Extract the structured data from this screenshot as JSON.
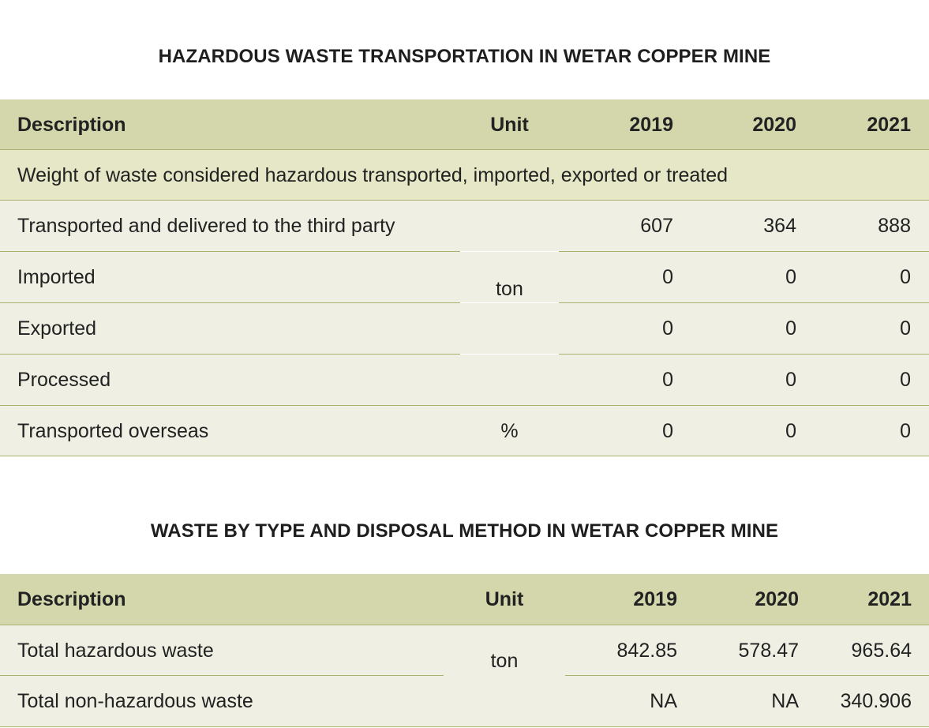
{
  "table1": {
    "title": "HAZARDOUS WASTE TRANSPORTATION IN WETAR COPPER MINE",
    "headers": [
      "Description",
      "Unit",
      "2019",
      "2020",
      "2021"
    ],
    "section_label": "Weight of waste considered hazardous transported, imported, exported or treated",
    "rows": [
      {
        "description": "Transported and delivered to the third party",
        "v2019": "607",
        "v2020": "364",
        "v2021": "888"
      },
      {
        "description": "Imported",
        "v2019": "0",
        "v2020": "0",
        "v2021": "0"
      },
      {
        "description": "Exported",
        "v2019": "0",
        "v2020": "0",
        "v2021": "0"
      },
      {
        "description": "Processed",
        "v2019": "0",
        "v2020": "0",
        "v2021": "0"
      },
      {
        "description": "Transported overseas",
        "unit": "%",
        "v2019": "0",
        "v2020": "0",
        "v2021": "0"
      }
    ],
    "merged_unit": "ton"
  },
  "table2": {
    "title": "WASTE BY TYPE AND DISPOSAL METHOD IN WETAR COPPER MINE",
    "headers": [
      "Description",
      "Unit",
      "2019",
      "2020",
      "2021"
    ],
    "rows": [
      {
        "description": "Total hazardous waste",
        "v2019": "842.85",
        "v2020": "578.47",
        "v2021": "965.64"
      },
      {
        "description": "Total non-hazardous waste",
        "v2019": "NA",
        "v2020": "NA",
        "v2021": "340.906"
      }
    ],
    "merged_unit": "ton"
  },
  "colors": {
    "header_bg": "#d4d6ab",
    "band_bg": "#e5e7c6",
    "body_bg": "#eff0e3",
    "rule": "#aab06d"
  }
}
